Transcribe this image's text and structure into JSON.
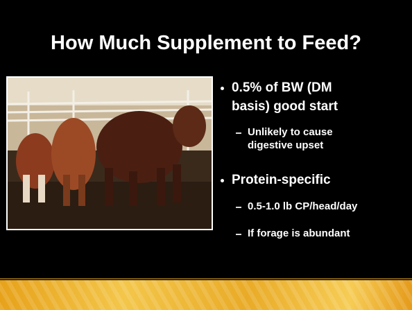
{
  "slide": {
    "title": "How Much Supplement to Feed?",
    "bullets": [
      {
        "text": "0.5% of BW (DM basis) good start",
        "sub": [
          "Unlikely to cause digestive upset"
        ]
      },
      {
        "text": "Protein-specific",
        "sub": [
          "0.5-1.0 lb CP/head/day",
          "If forage is abundant"
        ]
      }
    ]
  }
}
